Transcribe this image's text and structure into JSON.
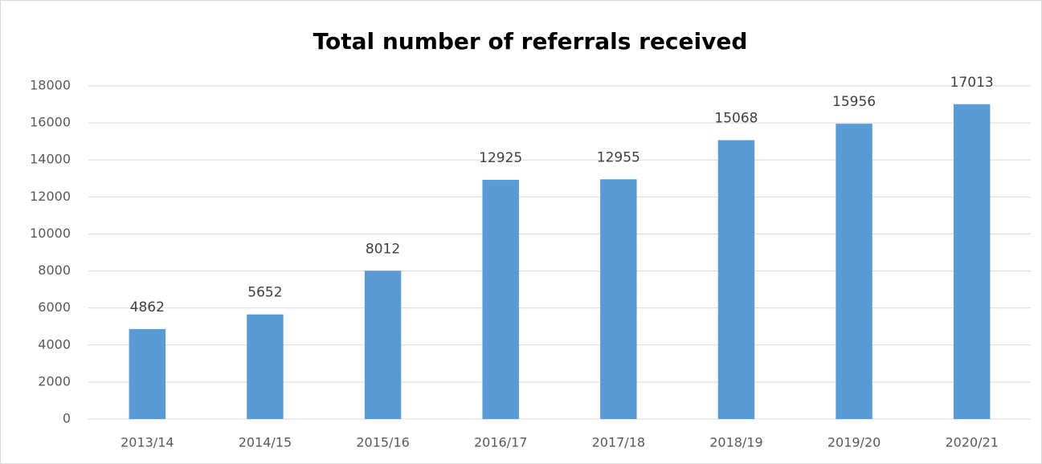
{
  "chart_data": {
    "type": "bar",
    "title": "Total number of referrals received",
    "categories": [
      "2013/14",
      "2014/15",
      "2015/16",
      "2016/17",
      "2017/18",
      "2018/19",
      "2019/20",
      "2020/21"
    ],
    "values": [
      4862,
      5652,
      8012,
      12925,
      12955,
      15068,
      15956,
      17013
    ],
    "color": "#5b9bd5",
    "ylim": [
      0,
      18000
    ],
    "yticks": [
      0,
      2000,
      4000,
      6000,
      8000,
      10000,
      12000,
      14000,
      16000,
      18000
    ],
    "grid": true
  }
}
